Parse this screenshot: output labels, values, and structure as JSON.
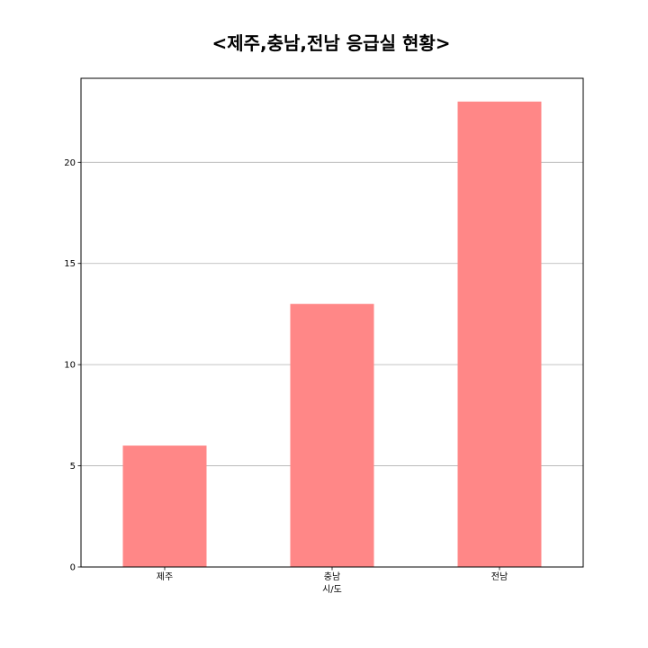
{
  "chart_data": {
    "type": "bar",
    "title": "<제주,충남,전남 응급실 현황>",
    "xlabel": "시/도",
    "ylabel": "",
    "categories": [
      "제주",
      "충남",
      "전남"
    ],
    "values": [
      6,
      13,
      23
    ],
    "ylim": [
      0,
      24.15
    ],
    "yticks": [
      0,
      5,
      10,
      15,
      20
    ],
    "grid": "y",
    "bar_color": "#ff8787",
    "legend": "none"
  }
}
